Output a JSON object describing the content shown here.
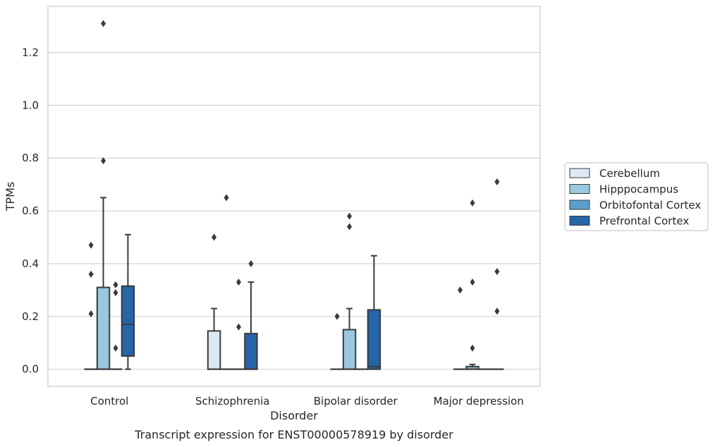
{
  "chart_data": {
    "type": "box",
    "title": "Transcript expression for ENST00000578919 by disorder",
    "xlabel": "Disorder",
    "ylabel": "TPMs",
    "categories": [
      "Control",
      "Schizophrenia",
      "Bipolar disorder",
      "Major depression"
    ],
    "ylim": [
      -0.065,
      1.375
    ],
    "yticks": [
      0.0,
      0.2,
      0.4,
      0.6,
      0.8,
      1.0,
      1.2
    ],
    "ytick_labels": [
      "0.0",
      "0.2",
      "0.4",
      "0.6",
      "0.8",
      "1.0",
      "1.2"
    ],
    "grid": true,
    "legend": "right",
    "series": [
      {
        "name": "Cerebellum",
        "color": "#dbe9f6",
        "boxes": [
          {
            "q1": 0,
            "median": 0,
            "q3": 0,
            "whisker_low": 0,
            "whisker_high": 0,
            "fliers": [
              0.47,
              0.36,
              0.21
            ]
          },
          {
            "q1": 0,
            "median": 0,
            "q3": 0.145,
            "whisker_low": 0,
            "whisker_high": 0.23,
            "fliers": [
              0.5
            ]
          },
          {
            "q1": 0,
            "median": 0,
            "q3": 0,
            "whisker_low": 0,
            "whisker_high": 0,
            "fliers": [
              0.2
            ]
          },
          {
            "q1": 0,
            "median": 0,
            "q3": 0,
            "whisker_low": 0,
            "whisker_high": 0,
            "fliers": [
              0.3
            ]
          }
        ]
      },
      {
        "name": "Hipppocampus",
        "color": "#9ac8e0",
        "boxes": [
          {
            "q1": 0,
            "median": 0,
            "q3": 0.31,
            "whisker_low": 0,
            "whisker_high": 0.65,
            "fliers": [
              1.31,
              0.79
            ]
          },
          {
            "q1": 0,
            "median": 0,
            "q3": 0,
            "whisker_low": 0,
            "whisker_high": 0,
            "fliers": [
              0.65
            ]
          },
          {
            "q1": 0,
            "median": 0,
            "q3": 0.15,
            "whisker_low": 0,
            "whisker_high": 0.23,
            "fliers": [
              0.58,
              0.54
            ]
          },
          {
            "q1": 0,
            "median": 0,
            "q3": 0.01,
            "whisker_low": 0,
            "whisker_high": 0.018,
            "fliers": [
              0.63,
              0.33,
              0.08
            ]
          }
        ]
      },
      {
        "name": "Orbitofontal Cortex",
        "color": "#5a9fcf",
        "boxes": [
          {
            "q1": 0,
            "median": 0,
            "q3": 0,
            "whisker_low": 0,
            "whisker_high": 0,
            "fliers": [
              0.32,
              0.29,
              0.08
            ]
          },
          {
            "q1": 0,
            "median": 0,
            "q3": 0,
            "whisker_low": 0,
            "whisker_high": 0,
            "fliers": [
              0.33,
              0.16
            ]
          },
          {
            "q1": 0,
            "median": 0,
            "q3": 0,
            "whisker_low": 0,
            "whisker_high": 0,
            "fliers": []
          },
          {
            "q1": 0,
            "median": 0,
            "q3": 0,
            "whisker_low": 0,
            "whisker_high": 0,
            "fliers": []
          }
        ]
      },
      {
        "name": "Prefrontal Cortex",
        "color": "#2565a8",
        "boxes": [
          {
            "q1": 0.05,
            "median": 0.17,
            "q3": 0.315,
            "whisker_low": 0,
            "whisker_high": 0.51,
            "fliers": []
          },
          {
            "q1": 0,
            "median": 0,
            "q3": 0.135,
            "whisker_low": 0,
            "whisker_high": 0.33,
            "fliers": [
              0.4
            ]
          },
          {
            "q1": 0,
            "median": 0.01,
            "q3": 0.225,
            "whisker_low": 0,
            "whisker_high": 0.43,
            "fliers": []
          },
          {
            "q1": 0,
            "median": 0,
            "q3": 0,
            "whisker_low": 0,
            "whisker_high": 0,
            "fliers": [
              0.71,
              0.37,
              0.22
            ]
          }
        ]
      }
    ]
  }
}
